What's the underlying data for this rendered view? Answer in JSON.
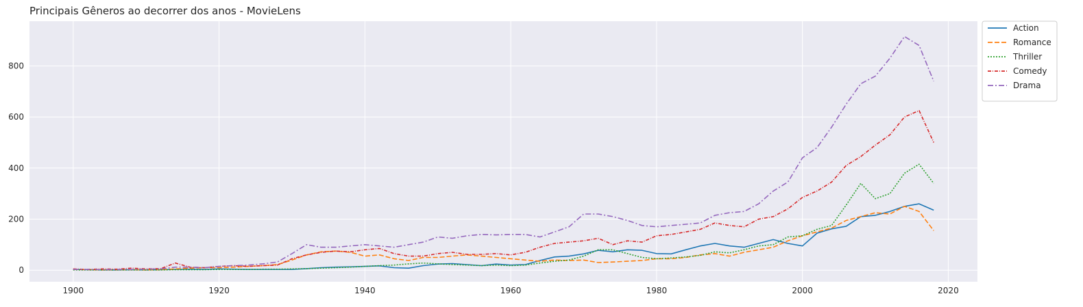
{
  "chart_data": {
    "type": "line",
    "title": "Principais Gêneros ao decorrer dos anos - MovieLens",
    "xlabel": "",
    "ylabel": "",
    "xlim": [
      1894,
      2024
    ],
    "ylim": [
      -45,
      975
    ],
    "x_ticks": [
      1900,
      1920,
      1940,
      1960,
      1980,
      2000,
      2020
    ],
    "y_ticks": [
      0,
      200,
      400,
      600,
      800
    ],
    "grid": true,
    "legend_position": "outside-top-right",
    "x": [
      1900,
      1902,
      1904,
      1906,
      1908,
      1910,
      1912,
      1914,
      1916,
      1918,
      1920,
      1922,
      1924,
      1926,
      1928,
      1930,
      1932,
      1934,
      1936,
      1938,
      1940,
      1942,
      1944,
      1946,
      1948,
      1950,
      1952,
      1954,
      1956,
      1958,
      1960,
      1962,
      1964,
      1966,
      1968,
      1970,
      1972,
      1974,
      1976,
      1978,
      1980,
      1982,
      1984,
      1986,
      1988,
      1990,
      1992,
      1994,
      1996,
      1998,
      2000,
      2002,
      2004,
      2006,
      2008,
      2010,
      2012,
      2014,
      2016,
      2018
    ],
    "series": [
      {
        "name": "Action",
        "color": "#1f77b4",
        "dash": "",
        "values": [
          3,
          2,
          1,
          1,
          2,
          1,
          2,
          3,
          4,
          3,
          5,
          4,
          3,
          3,
          3,
          3,
          6,
          10,
          12,
          13,
          15,
          17,
          10,
          8,
          18,
          24,
          26,
          22,
          18,
          24,
          20,
          22,
          38,
          52,
          55,
          64,
          78,
          72,
          80,
          78,
          65,
          64,
          80,
          95,
          105,
          95,
          90,
          105,
          120,
          105,
          95,
          145,
          162,
          172,
          210,
          215,
          230,
          250,
          260,
          235
        ]
      },
      {
        "name": "Romance",
        "color": "#ff7f0e",
        "dash": "7,3",
        "values": [
          3,
          2,
          1,
          2,
          2,
          1,
          2,
          5,
          8,
          10,
          10,
          12,
          15,
          18,
          22,
          40,
          60,
          72,
          75,
          70,
          55,
          60,
          45,
          38,
          50,
          50,
          55,
          60,
          55,
          50,
          45,
          40,
          35,
          40,
          38,
          40,
          30,
          32,
          35,
          38,
          45,
          45,
          50,
          60,
          65,
          55,
          70,
          80,
          90,
          115,
          135,
          150,
          165,
          195,
          210,
          225,
          220,
          250,
          230,
          155
        ]
      },
      {
        "name": "Thriller",
        "color": "#2ca02c",
        "dash": "2,2",
        "values": [
          1,
          1,
          1,
          1,
          1,
          1,
          1,
          2,
          2,
          2,
          3,
          3,
          3,
          4,
          4,
          5,
          6,
          8,
          10,
          12,
          15,
          18,
          20,
          25,
          28,
          25,
          22,
          20,
          18,
          20,
          18,
          20,
          28,
          35,
          40,
          55,
          80,
          80,
          65,
          50,
          45,
          48,
          52,
          58,
          72,
          68,
          80,
          95,
          100,
          130,
          135,
          160,
          175,
          255,
          340,
          280,
          300,
          380,
          415,
          340
        ]
      },
      {
        "name": "Comedy",
        "color": "#d62728",
        "dash": "5,2,1,2",
        "values": [
          5,
          3,
          5,
          4,
          8,
          5,
          6,
          28,
          12,
          10,
          15,
          18,
          15,
          18,
          20,
          45,
          60,
          70,
          75,
          72,
          80,
          85,
          65,
          55,
          55,
          65,
          70,
          62,
          62,
          65,
          60,
          70,
          90,
          105,
          110,
          115,
          125,
          100,
          115,
          110,
          135,
          140,
          150,
          160,
          185,
          175,
          170,
          200,
          210,
          240,
          285,
          310,
          345,
          410,
          445,
          490,
          530,
          600,
          625,
          500
        ]
      },
      {
        "name": "Drama",
        "color": "#9467bd",
        "dash": "8,3,2,3",
        "values": [
          3,
          3,
          2,
          3,
          3,
          4,
          5,
          12,
          12,
          10,
          15,
          18,
          20,
          25,
          32,
          65,
          100,
          90,
          90,
          95,
          100,
          95,
          90,
          100,
          110,
          130,
          125,
          135,
          140,
          138,
          140,
          140,
          130,
          150,
          170,
          220,
          220,
          210,
          195,
          175,
          170,
          175,
          180,
          185,
          215,
          225,
          230,
          260,
          310,
          345,
          440,
          480,
          560,
          650,
          730,
          760,
          830,
          915,
          880,
          740
        ]
      }
    ]
  }
}
